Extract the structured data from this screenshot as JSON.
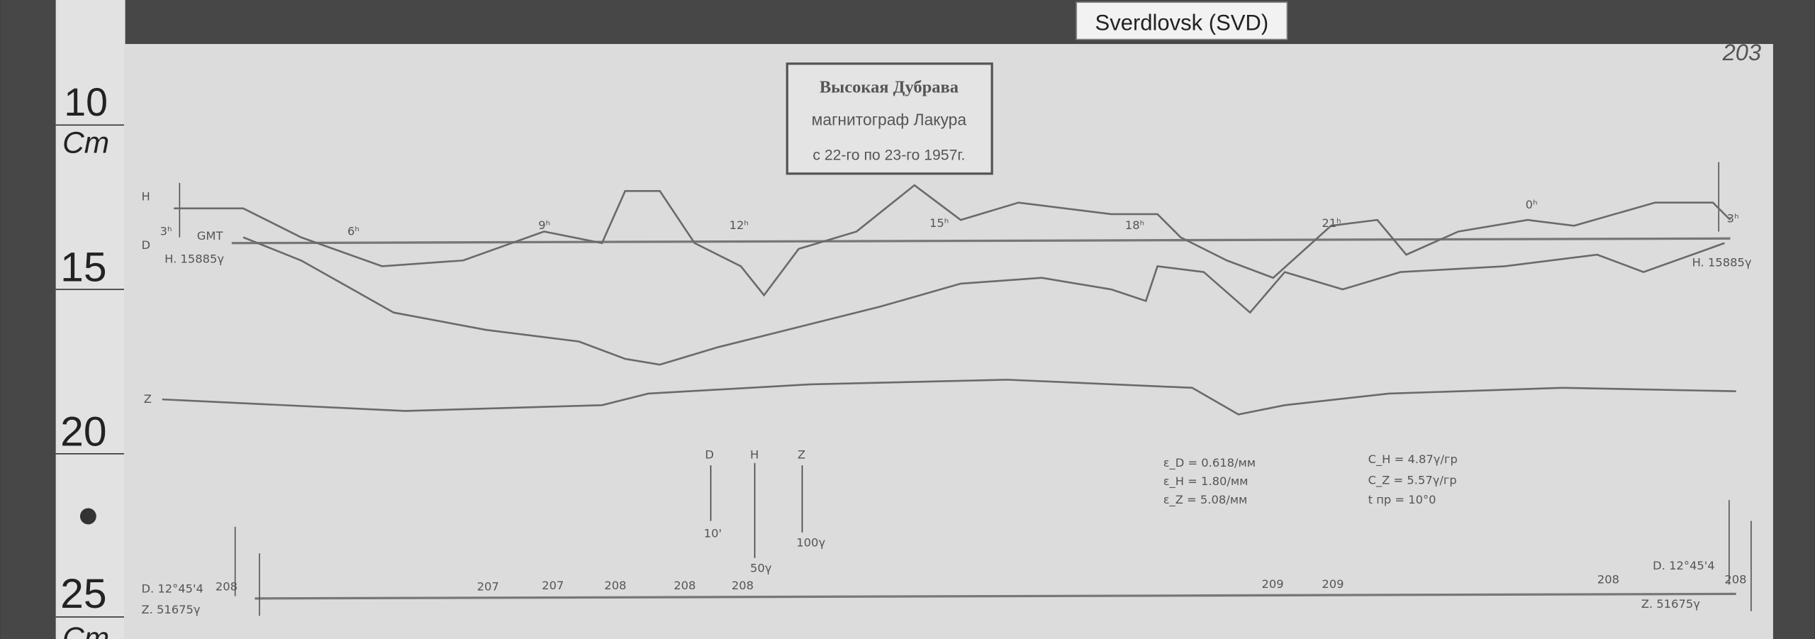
{
  "header": {
    "label": "Sverdlovsk (SVD)",
    "page_number": "203"
  },
  "ruler": {
    "marks": [
      "10",
      "Cm",
      "15",
      "20",
      "25",
      "Cm"
    ]
  },
  "stamp": {
    "lines": [
      "Высокая Дубрава",
      "магнитограф Лакура",
      "с 22-го по 23-го 1957г."
    ]
  },
  "curves": {
    "labels": [
      "H",
      "D",
      "Z"
    ]
  },
  "hours": [
    "3ʰ",
    "6ʰ",
    "9ʰ",
    "12ʰ",
    "15ʰ",
    "18ʰ",
    "21ʰ",
    "0ʰ",
    "3ʰ"
  ],
  "baseline": {
    "time": "GMT",
    "left": "H. 15885γ",
    "right": "H. 15885γ"
  },
  "scale_bars": {
    "names": [
      "D",
      "H",
      "Z"
    ],
    "sizes": [
      "10'",
      "50γ",
      "100γ"
    ]
  },
  "constants": [
    "ε_D = 0.618/мм",
    "ε_H = 1.80/мм",
    "ε_Z = 5.08/мм",
    "C_H = 4.87γ/гр",
    "C_Z = 5.57γ/гр",
    "t пр = 10°0"
  ],
  "bottom": {
    "left_d": "D. 12°45'4",
    "left_z": "Z. 51675γ",
    "right_d": "D. 12°45'4",
    "right_z": "Z. 51675γ",
    "temps": [
      "208",
      "207",
      "207",
      "208",
      "208",
      "208",
      "209",
      "209",
      "208",
      "208"
    ]
  }
}
